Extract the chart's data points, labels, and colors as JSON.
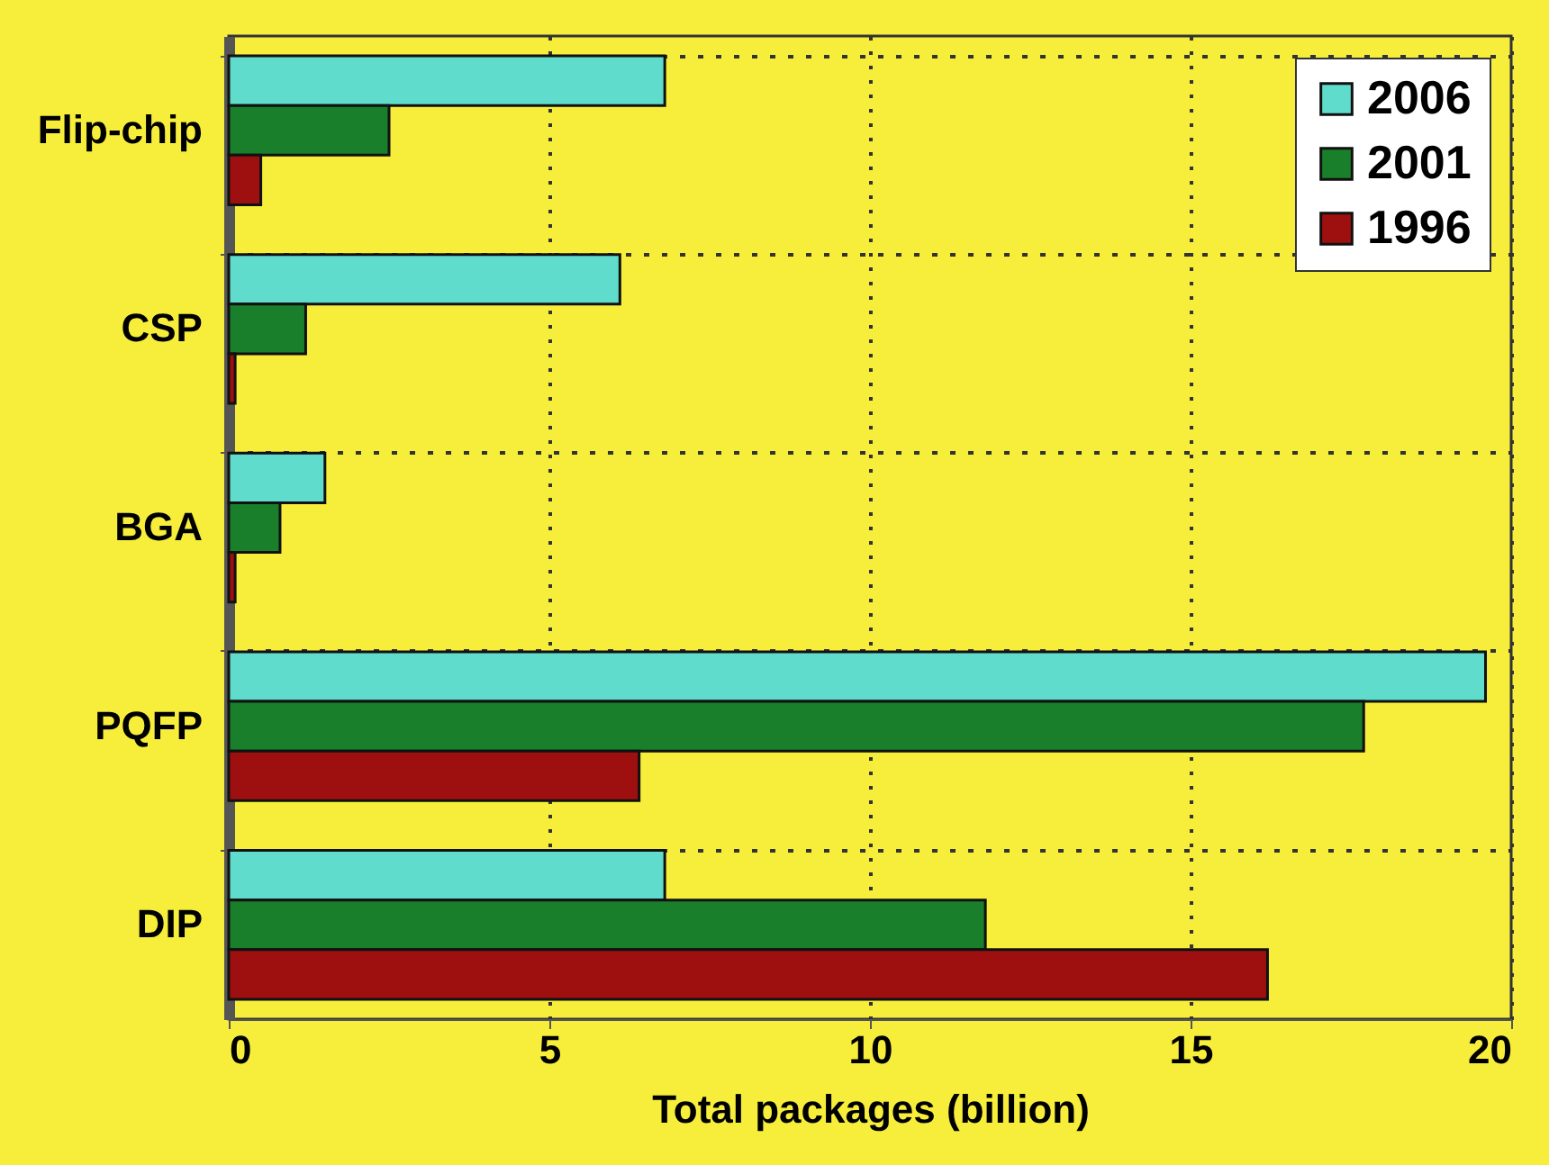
{
  "chart_data": {
    "type": "bar",
    "orientation": "horizontal",
    "xlabel": "Total packages (billion)",
    "categories": [
      "Flip-chip",
      "CSP",
      "BGA",
      "PQFP",
      "DIP"
    ],
    "series": [
      {
        "name": "2006",
        "color": "#5fdccb",
        "values": [
          6.8,
          6.1,
          1.5,
          19.6,
          6.8
        ]
      },
      {
        "name": "2001",
        "color": "#1a7f2a",
        "values": [
          2.5,
          1.2,
          0.8,
          17.7,
          11.8
        ]
      },
      {
        "name": "1996",
        "color": "#9e1010",
        "values": [
          0.5,
          0.1,
          0.1,
          6.4,
          16.2
        ]
      }
    ],
    "xlim": [
      0,
      20
    ],
    "xticks": [
      0,
      5,
      10,
      15,
      20
    ],
    "grid": true,
    "legend": "top right"
  }
}
